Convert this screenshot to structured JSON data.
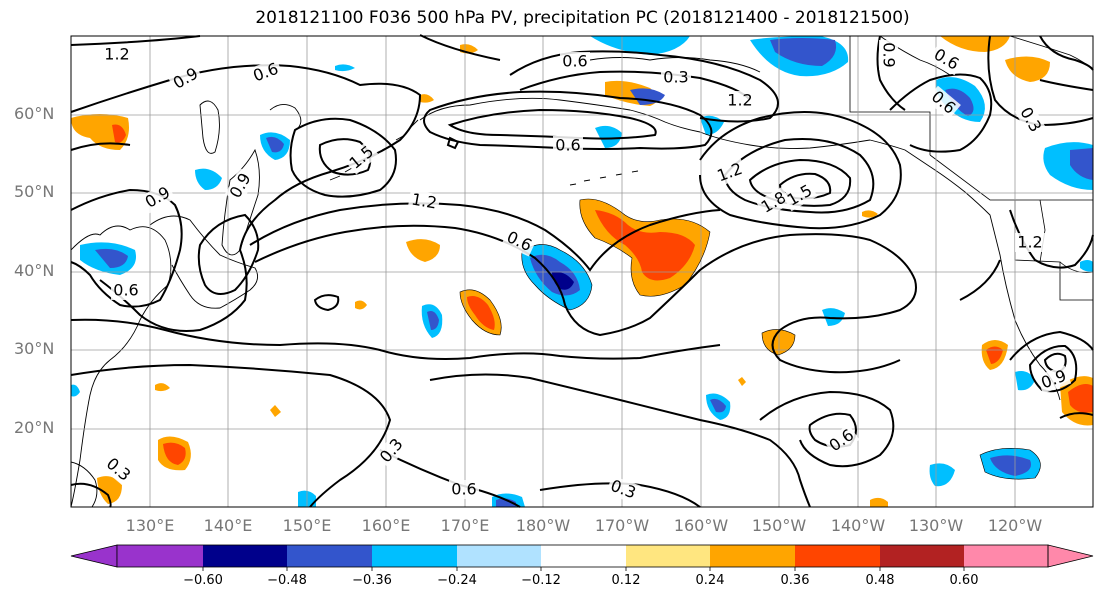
{
  "title": "2018121100 F036 500 hPa PV, precipitation PC (2018121400 - 2018121500)",
  "map": {
    "lat_labels": [
      "60°N",
      "50°N",
      "40°N",
      "30°N",
      "20°N"
    ],
    "lon_labels": [
      "130°E",
      "140°E",
      "150°E",
      "160°E",
      "170°E",
      "180°W",
      "170°W",
      "160°W",
      "150°W",
      "140°W",
      "130°W",
      "120°W"
    ],
    "contour_labels": [
      "1.2",
      "0.9",
      "0.6",
      "0.6",
      "0.3",
      "1.2",
      "1.5",
      "0.6",
      "1.2",
      "1.2",
      "0.9",
      "1.8",
      "1.5",
      "0.6",
      "0.6",
      "0.9",
      "0.6",
      "0.3",
      "0.6",
      "0.3",
      "0.6",
      "0.9",
      "0.3",
      "0.9",
      "0.6",
      "0.3",
      "1.2"
    ],
    "colors": {
      "neg_deep": "#9933cc",
      "neg_4": "#00008b",
      "neg_3": "#3355cc",
      "neg_2": "#00bfff",
      "neg_1": "#b0e2ff",
      "neutral": "#ffffff",
      "pos_1": "#ffe680",
      "pos_2": "#ffa500",
      "pos_3": "#ff4500",
      "pos_4": "#b22222",
      "pos_deep": "#ff88aa"
    }
  },
  "colorbar": {
    "ticks": [
      "−0.60",
      "−0.48",
      "−0.36",
      "−0.24",
      "−0.12",
      "0.12",
      "0.24",
      "0.36",
      "0.48",
      "0.60"
    ]
  }
}
